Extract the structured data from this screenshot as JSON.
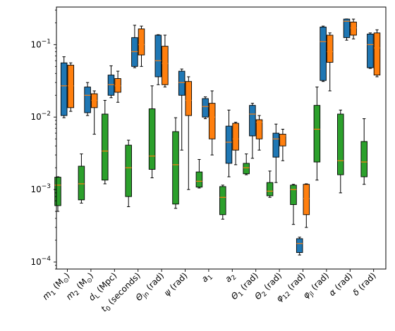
{
  "chart_data": {
    "type": "box",
    "yscale": "log",
    "ylim": [
      8e-05,
      0.33
    ],
    "yticks": [
      {
        "value": 0.0001,
        "label": "10",
        "exp": "−4"
      },
      {
        "value": 0.001,
        "label": "10",
        "exp": "−3"
      },
      {
        "value": 0.01,
        "label": "10",
        "exp": "−2"
      },
      {
        "value": 0.1,
        "label": "10",
        "exp": "−1"
      }
    ],
    "categories": [
      {
        "sym": "m",
        "sub": "1",
        "rest": " (M",
        "sun": "⊙",
        "end": ")"
      },
      {
        "sym": "m",
        "sub": "2",
        "rest": " (M",
        "sun": "⊙",
        "end": ")"
      },
      {
        "sym": "d",
        "sub": "L",
        "rest": " (Mpc)",
        "sun": "",
        "end": ""
      },
      {
        "sym": "t",
        "sub": "0",
        "rest": " (seconds)",
        "sun": "",
        "end": ""
      },
      {
        "sym": "Θ",
        "sub": "jn",
        "rest": " (rad)",
        "sun": "",
        "end": ""
      },
      {
        "sym": "ψ",
        "sub": "",
        "rest": " (rad)",
        "sun": "",
        "end": ""
      },
      {
        "sym": "a",
        "sub": "1",
        "rest": "",
        "sun": "",
        "end": ""
      },
      {
        "sym": "a",
        "sub": "2",
        "rest": "",
        "sun": "",
        "end": ""
      },
      {
        "sym": "Θ",
        "sub": "1",
        "rest": " (rad)",
        "sun": "",
        "end": ""
      },
      {
        "sym": "Θ",
        "sub": "2",
        "rest": " (rad)",
        "sun": "",
        "end": ""
      },
      {
        "sym": "φ",
        "sub": "12",
        "rest": " (rad)",
        "sun": "",
        "end": ""
      },
      {
        "sym": "φ",
        "sub": "jl",
        "rest": " (rad)",
        "sun": "",
        "end": ""
      },
      {
        "sym": "α",
        "sub": "",
        "rest": " (rad)",
        "sun": "",
        "end": ""
      },
      {
        "sym": "δ",
        "sub": "",
        "rest": " (rad)",
        "sun": "",
        "end": ""
      }
    ],
    "series": [
      {
        "color": "#1f77b4",
        "median_color": "#ff7f0e",
        "boxes": [
          {
            "wlo": 0.0098,
            "q1": 0.0105,
            "med": 0.027,
            "q3": 0.056,
            "whi": 0.068
          },
          {
            "wlo": 0.0105,
            "q1": 0.0115,
            "med": 0.02,
            "q3": 0.026,
            "whi": 0.03
          },
          {
            "wlo": 0.0185,
            "q1": 0.02,
            "med": 0.028,
            "q3": 0.038,
            "whi": 0.051
          },
          {
            "wlo": 0.048,
            "q1": 0.05,
            "med": 0.08,
            "q3": 0.125,
            "whi": 0.185
          },
          {
            "wlo": 0.028,
            "q1": 0.036,
            "med": 0.06,
            "q3": 0.135,
            "whi": 0.137
          },
          {
            "wlo": 0.0035,
            "q1": 0.02,
            "med": 0.03,
            "q3": 0.043,
            "whi": 0.046
          },
          {
            "wlo": 0.0095,
            "q1": 0.01,
            "med": 0.014,
            "q3": 0.018,
            "whi": 0.019
          },
          {
            "wlo": 0.0015,
            "q1": 0.0023,
            "med": 0.0045,
            "q3": 0.0075,
            "whi": 0.0125
          },
          {
            "wlo": 0.0027,
            "q1": 0.0055,
            "med": 0.011,
            "q3": 0.0145,
            "whi": 0.0155
          },
          {
            "wlo": 0.00125,
            "q1": 0.0028,
            "med": 0.005,
            "q3": 0.006,
            "whi": 0.008
          },
          {
            "wlo": 0.000125,
            "q1": 0.000135,
            "med": 0.00018,
            "q3": 0.00021,
            "whi": 0.00022
          },
          {
            "wlo": 0.031,
            "q1": 0.032,
            "med": 0.11,
            "q3": 0.175,
            "whi": 0.18
          },
          {
            "wlo": 0.115,
            "q1": 0.125,
            "med": 0.21,
            "q3": 0.225,
            "whi": 0.226
          },
          {
            "wlo": 0.047,
            "q1": 0.048,
            "med": 0.1,
            "q3": 0.14,
            "whi": 0.145
          }
        ]
      },
      {
        "color": "#ff7f0e",
        "median_color": "#ff7f0e",
        "boxes": [
          {
            "wlo": 0.012,
            "q1": 0.0135,
            "med": 0.027,
            "q3": 0.052,
            "whi": 0.056
          },
          {
            "wlo": 0.0058,
            "q1": 0.0135,
            "med": 0.017,
            "q3": 0.021,
            "whi": 0.023
          },
          {
            "wlo": 0.016,
            "q1": 0.022,
            "med": 0.027,
            "q3": 0.034,
            "whi": 0.043
          },
          {
            "wlo": 0.05,
            "q1": 0.072,
            "med": 0.1,
            "q3": 0.165,
            "whi": 0.18
          },
          {
            "wlo": 0.026,
            "q1": 0.028,
            "med": 0.055,
            "q3": 0.095,
            "whi": 0.135
          },
          {
            "wlo": 0.001,
            "q1": 0.0105,
            "med": 0.017,
            "q3": 0.031,
            "whi": 0.036
          },
          {
            "wlo": 0.003,
            "q1": 0.005,
            "med": 0.01,
            "q3": 0.0155,
            "whi": 0.023
          },
          {
            "wlo": 0.0022,
            "q1": 0.0035,
            "med": 0.005,
            "q3": 0.0082,
            "whi": 0.0085
          },
          {
            "wlo": 0.0035,
            "q1": 0.005,
            "med": 0.0085,
            "q3": 0.0092,
            "whi": 0.0105
          },
          {
            "wlo": 0.0025,
            "q1": 0.004,
            "med": 0.0055,
            "q3": 0.0058,
            "whi": 0.0068
          },
          {
            "wlo": 0.0003,
            "q1": 0.00045,
            "med": 0.00075,
            "q3": 0.00118,
            "whi": 0.0012
          },
          {
            "wlo": 0.023,
            "q1": 0.057,
            "med": 0.08,
            "q3": 0.135,
            "whi": 0.145
          },
          {
            "wlo": 0.12,
            "q1": 0.135,
            "med": 0.17,
            "q3": 0.205,
            "whi": 0.225
          },
          {
            "wlo": 0.036,
            "q1": 0.038,
            "med": 0.09,
            "q3": 0.145,
            "whi": 0.16
          }
        ]
      },
      {
        "color": "#2ca02c",
        "median_color": "#ff7f0e",
        "boxes": [
          {
            "wlo": 0.0005,
            "q1": 0.0006,
            "med": 0.00115,
            "q3": 0.00148,
            "whi": 0.0015
          },
          {
            "wlo": 0.00065,
            "q1": 0.00072,
            "med": 0.0012,
            "q3": 0.0021,
            "whi": 0.0031
          },
          {
            "wlo": 0.0012,
            "q1": 0.00135,
            "med": 0.0034,
            "q3": 0.011,
            "whi": 0.017
          },
          {
            "wlo": 0.00058,
            "q1": 0.0008,
            "med": 0.002,
            "q3": 0.0041,
            "whi": 0.0048
          },
          {
            "wlo": 0.00145,
            "q1": 0.0019,
            "med": 0.0029,
            "q3": 0.013,
            "whi": 0.027
          },
          {
            "wlo": 0.00055,
            "q1": 0.00063,
            "med": 0.0022,
            "q3": 0.0063,
            "whi": 0.0098
          },
          {
            "wlo": 0.00105,
            "q1": 0.00108,
            "med": 0.0013,
            "q3": 0.00175,
            "whi": 0.0026
          },
          {
            "wlo": 0.00039,
            "q1": 0.00045,
            "med": 0.00078,
            "q3": 0.0011,
            "whi": 0.00115
          },
          {
            "wlo": 0.0016,
            "q1": 0.00165,
            "med": 0.002,
            "q3": 0.0023,
            "whi": 0.0031
          },
          {
            "wlo": 0.00078,
            "q1": 0.00082,
            "med": 0.00095,
            "q3": 0.00125,
            "whi": 0.0018
          },
          {
            "wlo": 0.00033,
            "q1": 0.00062,
            "med": 0.001,
            "q3": 0.00115,
            "whi": 0.00118
          },
          {
            "wlo": 0.00135,
            "q1": 0.0024,
            "med": 0.0068,
            "q3": 0.0145,
            "whi": 0.026
          },
          {
            "wlo": 0.0009,
            "q1": 0.0016,
            "med": 0.0025,
            "q3": 0.011,
            "whi": 0.0125
          },
          {
            "wlo": 0.00118,
            "q1": 0.0015,
            "med": 0.0024,
            "q3": 0.0046,
            "whi": 0.0095
          }
        ]
      }
    ]
  }
}
